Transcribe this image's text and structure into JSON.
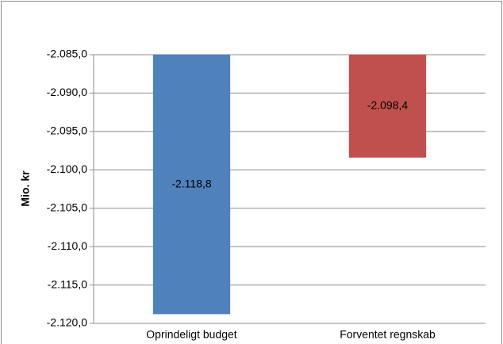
{
  "chart_data": {
    "type": "bar",
    "y_label": "Mio. kr",
    "categories": [
      "Oprindeligt budget",
      "Forventet regnskab"
    ],
    "values": [
      -2118.8,
      -2098.4
    ],
    "value_labels": [
      "-2.118,8",
      "-2.098,4"
    ],
    "colors": [
      "#4f81bd",
      "#c0504d"
    ],
    "ylim": [
      -2120,
      -2085
    ],
    "yticks": [
      {
        "value": -2120,
        "label": "-2.120,0"
      },
      {
        "value": -2115,
        "label": "-2.115,0"
      },
      {
        "value": -2110,
        "label": "-2.110,0"
      },
      {
        "value": -2105,
        "label": "-2.105,0"
      },
      {
        "value": -2100,
        "label": "-2.100,0"
      },
      {
        "value": -2095,
        "label": "-2.095,0"
      },
      {
        "value": -2090,
        "label": "-2.090,0"
      },
      {
        "value": -2085,
        "label": "-2.085,0"
      }
    ],
    "grid": true
  }
}
